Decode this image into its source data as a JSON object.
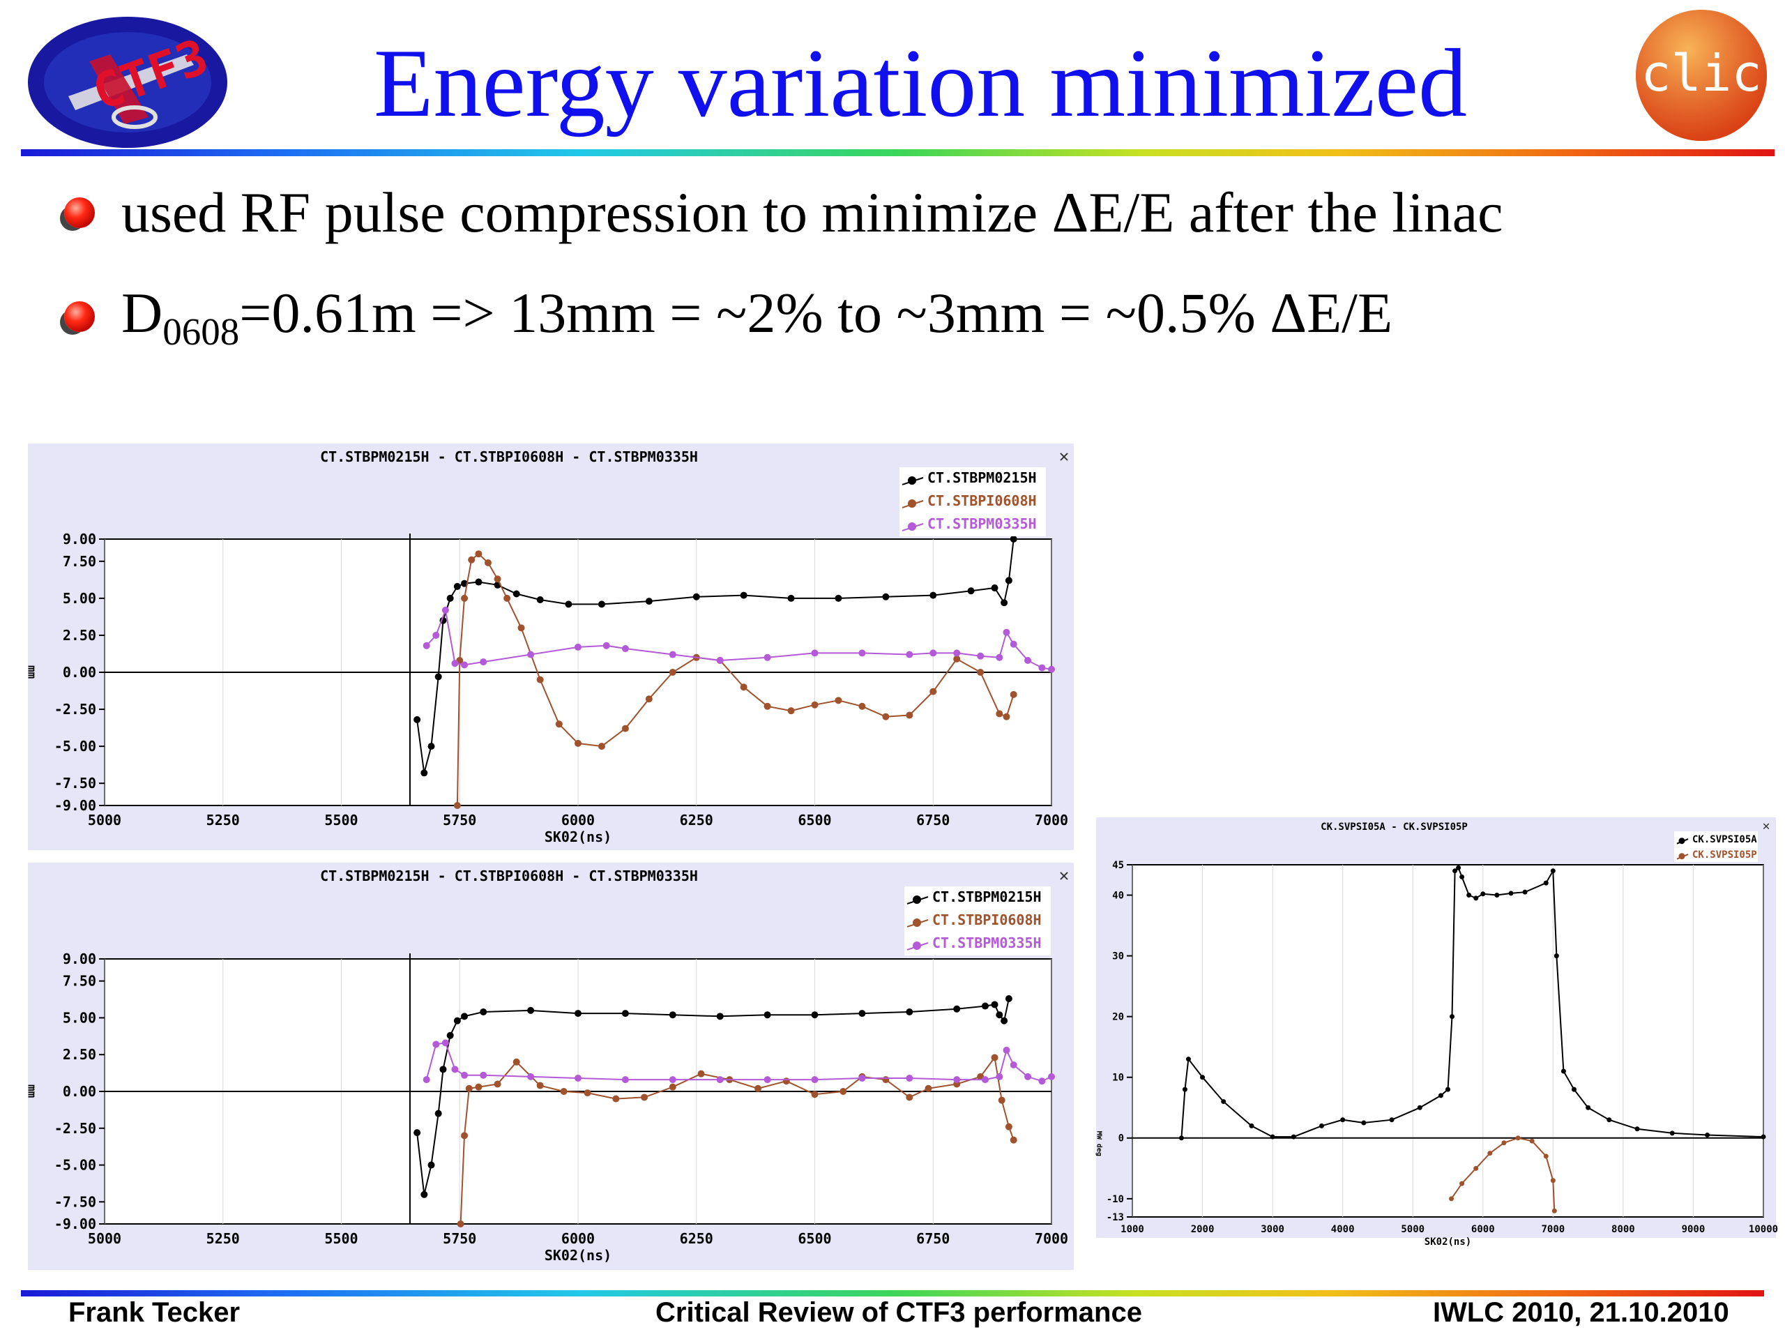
{
  "slide": {
    "title": "Energy variation minimized",
    "bullets": [
      {
        "text": "used RF pulse compression to minimize ΔE/E after the linac"
      },
      {
        "main": "D",
        "sub": "0608",
        "rest": "=0.61m => 13mm = ~2%  to  ~3mm = ~0.5% ΔE/E"
      }
    ],
    "footer": {
      "author": "Frank Tecker",
      "talk": "Critical Review of CTF3 performance",
      "event": "IWLC 2010, 21.10.2010"
    },
    "logos": {
      "left": "CTF3",
      "right": "clic"
    }
  },
  "colors": {
    "title": "#1010ee",
    "series_black": "#000000",
    "series_brown": "#a0522d",
    "series_purple": "#b45ad8",
    "panel_bg": "#e6e6f8"
  },
  "chart_data": [
    {
      "type": "line",
      "title": "CT.STBPM0215H - CT.STBPI0608H - CT.STBPM0335H",
      "xlabel": "SK02(ns)",
      "ylabel": "mm",
      "xlim": [
        5000,
        7000
      ],
      "ylim": [
        -9.0,
        9.0
      ],
      "xticks": [
        "5000",
        "5250",
        "5500",
        "5750",
        "6000",
        "6250",
        "6500",
        "6750",
        "7000"
      ],
      "yticks": [
        "9.00",
        "7.50",
        "5.00",
        "2.50",
        "0.00",
        "-2.50",
        "-5.00",
        "-7.50",
        "-9.00"
      ],
      "legend": "top-right",
      "close_glyph": "✕",
      "series": [
        {
          "name": "CT.STBPM0215H",
          "color": "#000000",
          "x": [
            5660,
            5675,
            5690,
            5705,
            5715,
            5730,
            5745,
            5760,
            5790,
            5830,
            5870,
            5920,
            5980,
            6050,
            6150,
            6250,
            6350,
            6450,
            6550,
            6650,
            6750,
            6830,
            6880,
            6900,
            6910,
            6920
          ],
          "y": [
            -3.2,
            -6.8,
            -5.0,
            -0.3,
            3.5,
            5.0,
            5.8,
            6.0,
            6.1,
            5.9,
            5.3,
            4.9,
            4.6,
            4.6,
            4.8,
            5.1,
            5.2,
            5.0,
            5.0,
            5.1,
            5.2,
            5.5,
            5.7,
            4.7,
            6.2,
            9.0
          ]
        },
        {
          "name": "CT.STBPI0608H",
          "color": "#a0522d",
          "x": [
            5745,
            5750,
            5760,
            5775,
            5790,
            5810,
            5830,
            5850,
            5880,
            5920,
            5960,
            6000,
            6050,
            6100,
            6150,
            6200,
            6250,
            6300,
            6350,
            6400,
            6450,
            6500,
            6550,
            6600,
            6650,
            6700,
            6750,
            6800,
            6850,
            6890,
            6905,
            6920
          ],
          "y": [
            -9.0,
            0.8,
            5.0,
            7.6,
            8.0,
            7.4,
            6.3,
            5.0,
            3.0,
            -0.5,
            -3.5,
            -4.8,
            -5.0,
            -3.8,
            -1.8,
            0.0,
            1.0,
            0.8,
            -1.0,
            -2.3,
            -2.6,
            -2.2,
            -1.9,
            -2.3,
            -3.0,
            -2.9,
            -1.3,
            0.9,
            0.0,
            -2.8,
            -3.0,
            -1.5
          ]
        },
        {
          "name": "CT.STBPM0335H",
          "color": "#b45ad8",
          "x": [
            5680,
            5700,
            5720,
            5740,
            5760,
            5800,
            5900,
            6000,
            6060,
            6100,
            6200,
            6300,
            6400,
            6500,
            6600,
            6700,
            6750,
            6800,
            6850,
            6890,
            6905,
            6920,
            6950,
            6980,
            7000
          ],
          "y": [
            1.8,
            2.5,
            4.2,
            0.6,
            0.5,
            0.7,
            1.2,
            1.7,
            1.8,
            1.6,
            1.2,
            0.8,
            1.0,
            1.3,
            1.3,
            1.2,
            1.3,
            1.3,
            1.1,
            1.0,
            2.7,
            1.9,
            0.8,
            0.3,
            0.2
          ]
        }
      ]
    },
    {
      "type": "line",
      "title": "CT.STBPM0215H - CT.STBPI0608H - CT.STBPM0335H",
      "xlabel": "SK02(ns)",
      "ylabel": "mm",
      "xlim": [
        5000,
        7000
      ],
      "ylim": [
        -9.0,
        9.0
      ],
      "xticks": [
        "5000",
        "5250",
        "5500",
        "5750",
        "6000",
        "6250",
        "6500",
        "6750",
        "7000"
      ],
      "yticks": [
        "9.00",
        "7.50",
        "5.00",
        "2.50",
        "0.00",
        "-2.50",
        "-5.00",
        "-7.50",
        "-9.00"
      ],
      "legend": "top-right",
      "close_glyph": "✕",
      "series": [
        {
          "name": "CT.STBPM0215H",
          "color": "#000000",
          "x": [
            5660,
            5675,
            5690,
            5705,
            5715,
            5730,
            5745,
            5760,
            5800,
            5900,
            6000,
            6100,
            6200,
            6300,
            6400,
            6500,
            6600,
            6700,
            6800,
            6860,
            6880,
            6890,
            6900,
            6910
          ],
          "y": [
            -2.8,
            -7.0,
            -5.0,
            -1.5,
            1.5,
            3.8,
            4.8,
            5.1,
            5.4,
            5.5,
            5.3,
            5.3,
            5.2,
            5.1,
            5.2,
            5.2,
            5.3,
            5.4,
            5.6,
            5.8,
            5.9,
            5.2,
            4.8,
            6.3
          ]
        },
        {
          "name": "CT.STBPI0608H",
          "color": "#a0522d",
          "x": [
            5752,
            5760,
            5770,
            5790,
            5830,
            5870,
            5920,
            5970,
            6020,
            6080,
            6140,
            6200,
            6260,
            6320,
            6380,
            6440,
            6500,
            6560,
            6600,
            6650,
            6700,
            6740,
            6800,
            6850,
            6880,
            6895,
            6910,
            6920
          ],
          "y": [
            -9.0,
            -3.0,
            0.2,
            0.3,
            0.5,
            2.0,
            0.4,
            0.0,
            -0.1,
            -0.5,
            -0.4,
            0.3,
            1.2,
            0.8,
            0.2,
            0.7,
            -0.2,
            0.0,
            1.0,
            0.8,
            -0.4,
            0.2,
            0.5,
            1.0,
            2.3,
            -0.6,
            -2.4,
            -3.3
          ]
        },
        {
          "name": "CT.STBPM0335H",
          "color": "#b45ad8",
          "x": [
            5680,
            5700,
            5720,
            5740,
            5760,
            5800,
            5900,
            6000,
            6100,
            6200,
            6300,
            6400,
            6500,
            6600,
            6700,
            6800,
            6860,
            6890,
            6905,
            6920,
            6950,
            6980,
            7000
          ],
          "y": [
            0.8,
            3.2,
            3.3,
            1.5,
            1.1,
            1.1,
            1.0,
            0.9,
            0.8,
            0.8,
            0.8,
            0.8,
            0.8,
            0.9,
            0.9,
            0.8,
            0.8,
            1.0,
            2.8,
            1.8,
            1.0,
            0.7,
            1.0
          ]
        }
      ]
    },
    {
      "type": "line",
      "title": "CK.SVPSI05A - CK.SVPSI05P",
      "xlabel": "SK02(ns)",
      "ylabel": "MW deg",
      "xlim": [
        1000,
        10000
      ],
      "ylim": [
        -13,
        45
      ],
      "xticks": [
        "1000",
        "2000",
        "3000",
        "4000",
        "5000",
        "6000",
        "7000",
        "8000",
        "9000",
        "10000"
      ],
      "yticks": [
        "45",
        "40",
        "30",
        "20",
        "10",
        "0",
        "-10",
        "-13"
      ],
      "legend": "top-right",
      "close_glyph": "✕",
      "series": [
        {
          "name": "CK.SVPSI05A",
          "color": "#000000",
          "x": [
            1700,
            1750,
            1800,
            2000,
            2300,
            2700,
            3000,
            3300,
            3700,
            4000,
            4300,
            4700,
            5100,
            5400,
            5500,
            5560,
            5600,
            5650,
            5700,
            5800,
            5900,
            6000,
            6200,
            6400,
            6600,
            6900,
            7000,
            7050,
            7150,
            7300,
            7500,
            7800,
            8200,
            8700,
            9200,
            10000
          ],
          "y": [
            0,
            8,
            13,
            10,
            6,
            2,
            0.2,
            0.2,
            2,
            3,
            2.5,
            3,
            5,
            7,
            8,
            20,
            44,
            44.5,
            43,
            40,
            39.5,
            40.2,
            40,
            40.3,
            40.5,
            42,
            44,
            30,
            11,
            8,
            5,
            3,
            1.5,
            0.8,
            0.5,
            0.2
          ]
        },
        {
          "name": "CK.SVPSI05P",
          "color": "#a0522d",
          "x": [
            5550,
            5700,
            5900,
            6100,
            6300,
            6500,
            6700,
            6900,
            7000,
            7020
          ],
          "y": [
            -10,
            -7.5,
            -5,
            -2.5,
            -0.8,
            0,
            -0.5,
            -3,
            -7,
            -12
          ]
        }
      ]
    }
  ]
}
